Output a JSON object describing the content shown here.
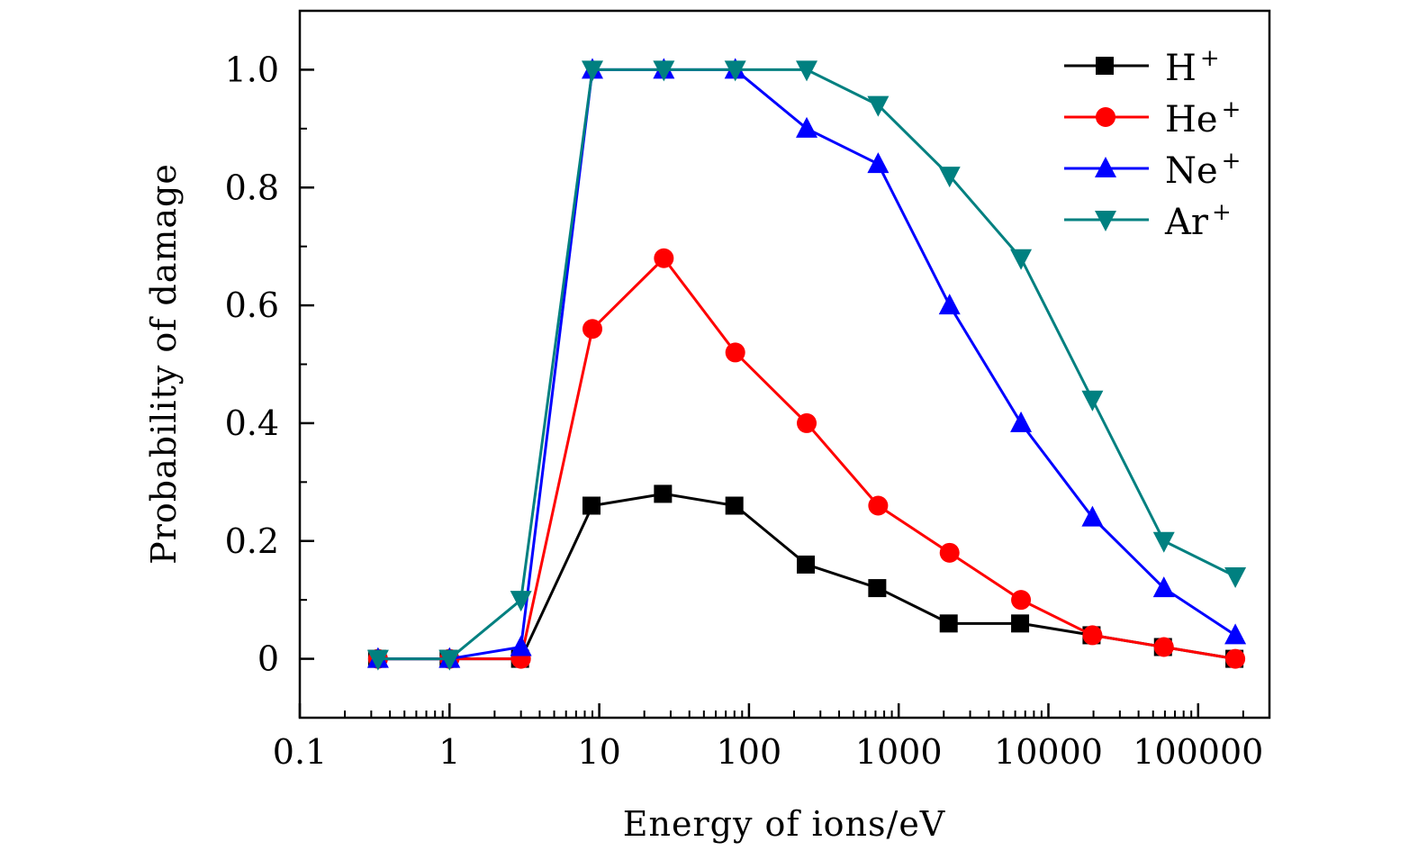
{
  "chart_data": {
    "type": "line",
    "title": "",
    "xlabel": "Energy of ions/eV",
    "ylabel": "Probability of damage",
    "xscale": "log",
    "xlim": [
      0.1,
      300000
    ],
    "ylim": [
      -0.1,
      1.1
    ],
    "grid": false,
    "legend_position": "top-right",
    "x_ticks": [
      {
        "value": 0.1,
        "label": "0.1"
      },
      {
        "value": 1,
        "label": "1"
      },
      {
        "value": 10,
        "label": "10"
      },
      {
        "value": 100,
        "label": "100"
      },
      {
        "value": 1000,
        "label": "1000"
      },
      {
        "value": 10000,
        "label": "10000"
      },
      {
        "value": 100000,
        "label": "100000"
      }
    ],
    "y_ticks": [
      {
        "value": 0,
        "label": "0"
      },
      {
        "value": 0.2,
        "label": "0.2"
      },
      {
        "value": 0.4,
        "label": "0.4"
      },
      {
        "value": 0.6,
        "label": "0.6"
      },
      {
        "value": 0.8,
        "label": "0.8"
      },
      {
        "value": 1.0,
        "label": "1.0"
      }
    ],
    "x": [
      0.333,
      1,
      3,
      9,
      27,
      81,
      243,
      729,
      2187,
      6561,
      19683,
      59049,
      177147
    ],
    "series": [
      {
        "name": "H",
        "charge": "+",
        "color": "#000000",
        "marker": "square",
        "values": [
          0,
          0,
          0,
          0.26,
          0.28,
          0.26,
          0.16,
          0.12,
          0.06,
          0.06,
          0.04,
          0.02,
          0
        ]
      },
      {
        "name": "He",
        "charge": "+",
        "color": "#ff0000",
        "marker": "circle",
        "values": [
          0,
          0,
          0,
          0.56,
          0.68,
          0.52,
          0.4,
          0.26,
          0.18,
          0.1,
          0.04,
          0.02,
          0
        ]
      },
      {
        "name": "Ne",
        "charge": "+",
        "color": "#0000ff",
        "marker": "triangle-up",
        "values": [
          0,
          0,
          0.02,
          1.0,
          1.0,
          1.0,
          0.9,
          0.84,
          0.6,
          0.4,
          0.24,
          0.12,
          0.04
        ]
      },
      {
        "name": "Ar",
        "charge": "+",
        "color": "#008080",
        "marker": "triangle-down",
        "values": [
          0,
          0,
          0.1,
          1.0,
          1.0,
          1.0,
          1.0,
          0.94,
          0.82,
          0.68,
          0.44,
          0.2,
          0.14
        ]
      }
    ]
  }
}
